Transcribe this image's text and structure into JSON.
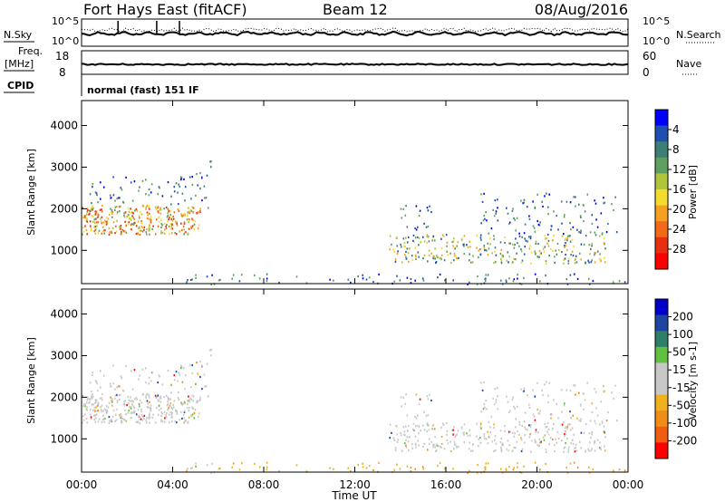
{
  "header": {
    "station": "Fort Hays East (fitACF)",
    "beam": "Beam 12",
    "date": "08/Aug/2016"
  },
  "side_labels": {
    "n_sky": "N.Sky",
    "freq_line1": "Freq.",
    "freq_line2": "[MHz]",
    "cpid": "CPID",
    "n_search": "N.Search",
    "nave": "Nave"
  },
  "cpid_text": "normal (fast) 151 IF",
  "chart_data": [
    {
      "type": "line",
      "name": "noise-panel",
      "left_ticks": [
        "10^5",
        "10^0"
      ],
      "right_ticks": [
        "10^5",
        "10^0"
      ]
    },
    {
      "type": "line",
      "name": "freq-nave-panel",
      "left_ticks": [
        "18",
        "8"
      ],
      "right_ticks": [
        "60",
        "0"
      ]
    },
    {
      "type": "heatmap",
      "name": "power-rti",
      "ylabel": "Slant Range [km]",
      "yticks": [
        1000,
        2000,
        3000,
        4000
      ],
      "ylim": [
        200,
        4600
      ],
      "colorbar": {
        "label": "Power [dB]",
        "ticks": [
          "4",
          "8",
          "12",
          "16",
          "20",
          "24",
          "28"
        ],
        "colors": [
          "#0000ff",
          "#1f4fb0",
          "#3d7f76",
          "#5fa060",
          "#b0c43c",
          "#f4dc2c",
          "#f5a020",
          "#f06a18",
          "#e83010",
          "#ff0000"
        ]
      },
      "regions": [
        {
          "t0": 0.0,
          "t1": 5.2,
          "r0": 1400,
          "r1": 2100,
          "kind": "strong"
        },
        {
          "t0": 0.0,
          "t1": 5.0,
          "r0": 2100,
          "r1": 2800,
          "kind": "weak"
        },
        {
          "t0": 5.0,
          "t1": 5.7,
          "r0": 2000,
          "r1": 3200,
          "kind": "weak"
        },
        {
          "t0": 4.5,
          "t1": 24.0,
          "r0": 200,
          "r1": 450,
          "kind": "weak"
        },
        {
          "t0": 13.7,
          "t1": 15.5,
          "r0": 1500,
          "r1": 2100,
          "kind": "weak"
        },
        {
          "t0": 13.5,
          "t1": 23.0,
          "r0": 700,
          "r1": 1400,
          "kind": "mid"
        },
        {
          "t0": 17.5,
          "t1": 23.5,
          "r0": 1400,
          "r1": 2400,
          "kind": "weak"
        }
      ]
    },
    {
      "type": "heatmap",
      "name": "velocity-rti",
      "ylabel": "Slant Range [km]",
      "xlabel": "Time UT",
      "xticks": [
        "00:00",
        "04:00",
        "08:00",
        "12:00",
        "16:00",
        "20:00",
        "00:00"
      ],
      "yticks": [
        1000,
        2000,
        3000,
        4000
      ],
      "ylim": [
        200,
        4600
      ],
      "colorbar": {
        "label": "Velocity [m s-1]",
        "ticks": [
          "200",
          "100",
          "50",
          "15",
          "-15",
          "-50",
          "-100",
          "-200"
        ],
        "colors": [
          "#0000c8",
          "#1e46a0",
          "#2e7f6a",
          "#62c040",
          "#c8c8c8",
          "#c8c8c8",
          "#f0b020",
          "#f08c18",
          "#f05c10",
          "#ff0000"
        ]
      }
    }
  ]
}
